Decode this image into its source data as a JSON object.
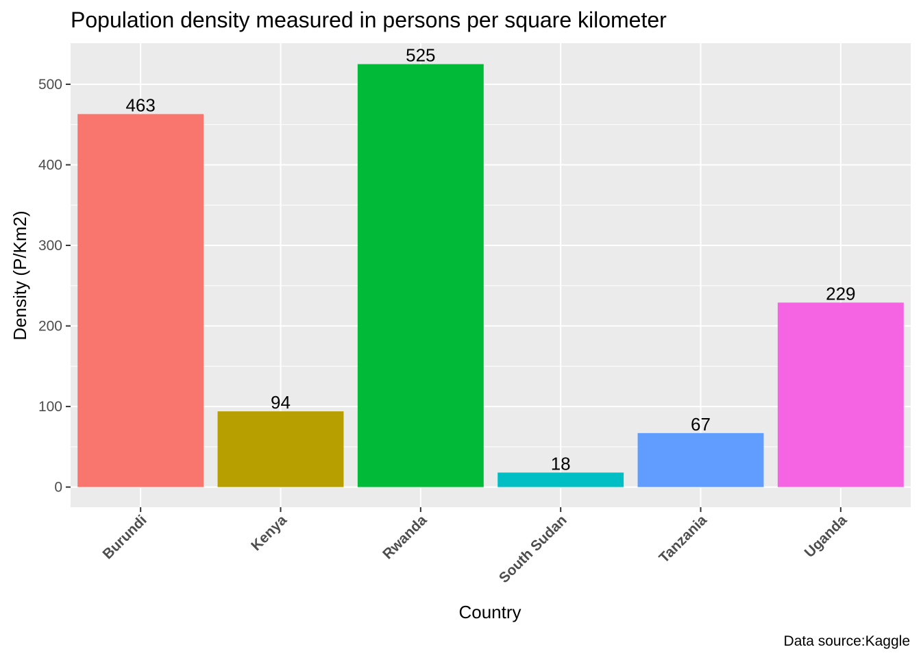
{
  "chart_data": {
    "type": "bar",
    "title": "Population density measured in persons per square kilometer",
    "xlabel": "Country",
    "ylabel": "Density (P/Km2)",
    "caption": "Data source:Kaggle",
    "categories": [
      "Burundi",
      "Kenya",
      "Rwanda",
      "South Sudan",
      "Tanzania",
      "Uganda"
    ],
    "values": [
      463,
      94,
      525,
      18,
      67,
      229
    ],
    "data_labels": [
      "463",
      "94",
      "525",
      "18",
      "67",
      "229"
    ],
    "colors": [
      "#F8766D",
      "#B79F00",
      "#00BA38",
      "#00BFC4",
      "#619CFF",
      "#F564E3"
    ],
    "ylim": [
      -25,
      551
    ],
    "yticks": [
      0,
      100,
      200,
      300,
      400,
      500
    ],
    "ytick_labels": [
      "0",
      "100",
      "200",
      "300",
      "400",
      "500"
    ],
    "grid": true,
    "panel_background": "#EBEBEB",
    "legend": "none"
  }
}
